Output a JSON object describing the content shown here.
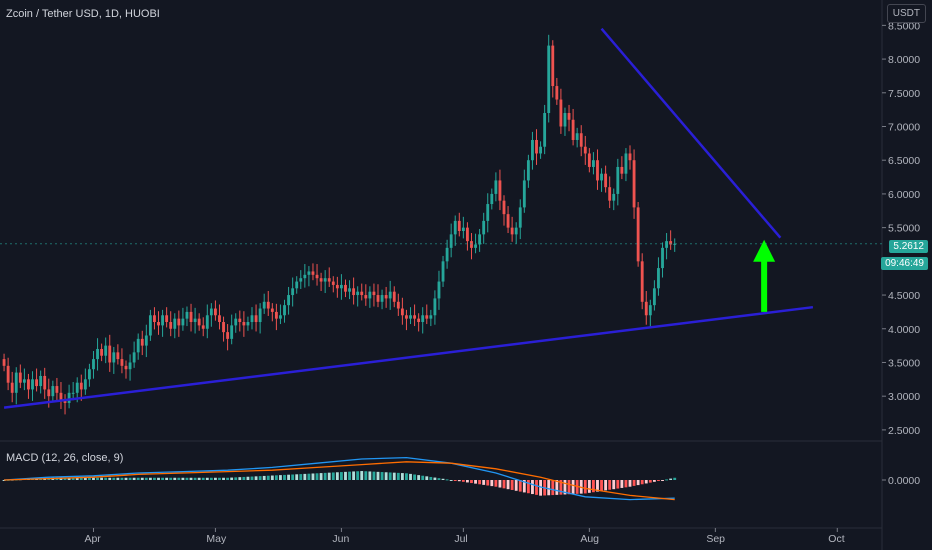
{
  "header": {
    "title": "Zcoin / Tether USD, 1D, HUOBI",
    "currency_button": "USDT"
  },
  "price_tags": {
    "last_price": "5.2612",
    "countdown": "09:46:49"
  },
  "macd": {
    "title": "MACD (12, 26, close, 9)",
    "zero_label": "0.0000"
  },
  "colors": {
    "background": "#131722",
    "up": "#26a69a",
    "down": "#ef5350",
    "trendline": "#2a1fd6",
    "arrow": "#00ff00",
    "macd_line": "#2196f3",
    "signal_line": "#ff6d00"
  },
  "chart_data": {
    "type": "candlestick",
    "y_axis": {
      "ticks": [
        "8.5000",
        "8.0000",
        "7.5000",
        "7.0000",
        "6.5000",
        "6.0000",
        "5.5000",
        "5.0000",
        "4.5000",
        "4.0000",
        "3.5000",
        "3.0000",
        "2.5000"
      ],
      "range": [
        2.35,
        8.55
      ]
    },
    "x_axis": {
      "ticks": [
        "Apr",
        "May",
        "Jun",
        "Jul",
        "Aug",
        "Sep",
        "Oct"
      ],
      "range": [
        "2020-03-09",
        "2020-10-12"
      ]
    },
    "start_date": "2020-03-10",
    "closes": [
      3.45,
      3.2,
      3.05,
      3.35,
      3.2,
      3.25,
      3.1,
      3.25,
      3.15,
      3.3,
      3.1,
      3.0,
      3.15,
      3.05,
      2.95,
      2.9,
      3.05,
      3.05,
      3.2,
      3.1,
      3.25,
      3.4,
      3.55,
      3.7,
      3.6,
      3.75,
      3.5,
      3.65,
      3.55,
      3.45,
      3.4,
      3.5,
      3.65,
      3.85,
      3.75,
      3.9,
      4.2,
      4.1,
      4.05,
      4.2,
      4.1,
      4.0,
      4.15,
      4.05,
      4.15,
      4.25,
      4.1,
      4.15,
      4.05,
      4.0,
      4.2,
      4.3,
      4.2,
      4.1,
      3.95,
      3.85,
      4.05,
      4.15,
      4.1,
      4.05,
      4.1,
      4.2,
      4.1,
      4.3,
      4.4,
      4.3,
      4.25,
      4.15,
      4.2,
      4.35,
      4.5,
      4.6,
      4.7,
      4.75,
      4.8,
      4.85,
      4.8,
      4.75,
      4.7,
      4.75,
      4.7,
      4.65,
      4.6,
      4.65,
      4.55,
      4.6,
      4.5,
      4.55,
      4.5,
      4.45,
      4.55,
      4.5,
      4.4,
      4.5,
      4.45,
      4.55,
      4.4,
      4.3,
      4.2,
      4.15,
      4.2,
      4.15,
      4.1,
      4.2,
      4.15,
      4.2,
      4.45,
      4.7,
      5.0,
      5.2,
      5.4,
      5.6,
      5.45,
      5.5,
      5.3,
      5.2,
      5.25,
      5.4,
      5.6,
      5.85,
      6.0,
      6.2,
      5.9,
      5.7,
      5.5,
      5.4,
      5.5,
      5.8,
      6.2,
      6.5,
      6.8,
      6.6,
      6.7,
      7.2,
      8.2,
      7.6,
      7.4,
      7.0,
      7.2,
      7.1,
      6.8,
      6.9,
      6.7,
      6.6,
      6.4,
      6.5,
      6.2,
      6.3,
      6.1,
      5.9,
      6.0,
      6.4,
      6.3,
      6.6,
      6.5,
      5.8,
      5.0,
      4.4,
      4.2,
      4.35,
      4.6,
      4.9,
      5.2,
      5.3,
      5.25,
      5.26
    ],
    "trendlines": [
      {
        "name": "support",
        "from": {
          "date": "2020-03-10",
          "price": 2.83
        },
        "to": {
          "date": "2020-09-25",
          "price": 4.32
        }
      },
      {
        "name": "resistance",
        "from": {
          "date": "2020-08-04",
          "price": 8.45
        },
        "to": {
          "date": "2020-09-17",
          "price": 5.35
        }
      }
    ],
    "annotation": {
      "type": "arrow-up",
      "date": "2020-09-13",
      "from_price": 4.25,
      "to_price": 5.32
    },
    "macd_panel": {
      "ticks": [
        "0.0000"
      ],
      "macd_line": [
        0,
        0.02,
        0.03,
        0.05,
        0.06,
        0.07,
        0.09,
        0.12,
        0.15,
        0.16,
        0.12,
        0.05,
        -0.05,
        -0.12,
        -0.14,
        -0.13
      ],
      "signal_line": [
        0,
        0.01,
        0.02,
        0.04,
        0.05,
        0.06,
        0.07,
        0.09,
        0.11,
        0.13,
        0.12,
        0.08,
        0.02,
        -0.06,
        -0.11,
        -0.14
      ]
    }
  }
}
